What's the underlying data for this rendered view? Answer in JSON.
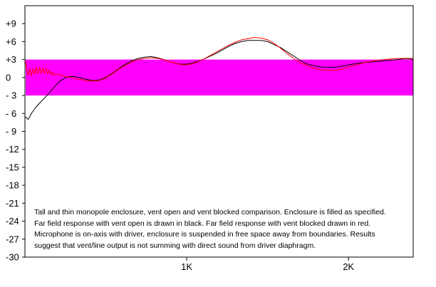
{
  "chart_data": {
    "type": "line",
    "title": "",
    "xlabel": "",
    "ylabel": "",
    "ylim": [
      -30,
      12
    ],
    "xlim": [
      0,
      2400
    ],
    "yticks": [
      9,
      6,
      3,
      0,
      -3,
      -6,
      -9,
      -12,
      -15,
      -18,
      -21,
      -24,
      -27,
      -30
    ],
    "ytick_labels": [
      "+9",
      "+6",
      "+3",
      "0",
      "- 3",
      "- 6",
      "- 9",
      "-12",
      "-15",
      "-18",
      "-21",
      "-24",
      "-27",
      "-30"
    ],
    "xticks": [
      1000,
      2000
    ],
    "xtick_labels": [
      "1K",
      "2K"
    ],
    "band": {
      "y_min": -3,
      "y_max": 3,
      "color": "#ff00ff"
    },
    "grid": false,
    "series": [
      {
        "color": "#000000",
        "x": [
          0,
          20,
          45,
          70,
          100,
          140,
          180,
          220,
          260,
          300,
          340,
          380,
          420,
          460,
          500,
          540,
          580,
          620,
          660,
          700,
          740,
          780,
          820,
          860,
          900,
          940,
          980,
          1020,
          1060,
          1100,
          1140,
          1180,
          1220,
          1260,
          1300,
          1340,
          1380,
          1420,
          1460,
          1500,
          1540,
          1580,
          1620,
          1660,
          1700,
          1740,
          1780,
          1820,
          1860,
          1900,
          1940,
          1980,
          2020,
          2060,
          2100,
          2140,
          2180,
          2220,
          2260,
          2300,
          2340,
          2380,
          2400
        ],
        "y": [
          -6.5,
          -7.0,
          -5.8,
          -4.9,
          -4.0,
          -2.9,
          -1.6,
          -0.5,
          0.1,
          0.2,
          0.0,
          -0.3,
          -0.5,
          -0.4,
          0.0,
          0.7,
          1.5,
          2.2,
          2.8,
          3.2,
          3.4,
          3.5,
          3.3,
          3.0,
          2.6,
          2.3,
          2.2,
          2.3,
          2.6,
          3.0,
          3.5,
          4.0,
          4.6,
          5.2,
          5.7,
          6.0,
          6.2,
          6.2,
          6.2,
          6.0,
          5.5,
          5.0,
          4.3,
          3.6,
          2.9,
          2.3,
          2.0,
          1.8,
          1.7,
          1.7,
          1.8,
          2.0,
          2.2,
          2.4,
          2.5,
          2.6,
          2.7,
          2.8,
          2.9,
          3.0,
          3.1,
          3.1,
          3.0
        ]
      },
      {
        "color": "#ff0000",
        "x": [
          0,
          10,
          20,
          30,
          40,
          50,
          60,
          70,
          80,
          90,
          100,
          110,
          120,
          130,
          140,
          150,
          160,
          170,
          180,
          190,
          200,
          220,
          260,
          300,
          340,
          380,
          420,
          460,
          500,
          540,
          580,
          620,
          660,
          700,
          740,
          780,
          820,
          860,
          900,
          940,
          980,
          1020,
          1060,
          1100,
          1140,
          1180,
          1220,
          1260,
          1300,
          1340,
          1380,
          1420,
          1460,
          1500,
          1540,
          1580,
          1620,
          1660,
          1700,
          1740,
          1780,
          1820,
          1860,
          1900,
          1940,
          1980,
          2020,
          2060,
          2100,
          2140,
          2180,
          2220,
          2260,
          2300,
          2340,
          2380,
          2400
        ],
        "y": [
          3.0,
          1.5,
          0.4,
          1.4,
          0.3,
          1.5,
          0.5,
          1.6,
          0.6,
          1.7,
          0.7,
          1.6,
          0.7,
          1.5,
          0.6,
          1.2,
          0.5,
          0.9,
          0.4,
          0.6,
          0.5,
          0.4,
          0.1,
          -0.1,
          -0.3,
          -0.5,
          -0.6,
          -0.5,
          -0.1,
          0.6,
          1.4,
          2.0,
          2.6,
          3.0,
          3.2,
          3.3,
          3.2,
          3.0,
          2.6,
          2.3,
          2.1,
          2.2,
          2.5,
          3.0,
          3.6,
          4.2,
          4.8,
          5.4,
          5.9,
          6.3,
          6.5,
          6.7,
          6.6,
          6.3,
          5.7,
          4.9,
          4.0,
          3.2,
          2.5,
          2.0,
          1.6,
          1.3,
          1.2,
          1.2,
          1.3,
          1.6,
          1.9,
          2.2,
          2.5,
          2.7,
          2.9,
          3.0,
          3.1,
          3.2,
          3.2,
          3.2,
          3.2
        ]
      }
    ],
    "annotation": [
      "Tall and thin monopole enclosure, vent open and vent blocked comparison.  Enclosure is filled as specified.",
      "Far field response with vent open is drawn in black.  Far field response with vent blocked drawn in red.",
      "Microphone is on-axis with driver, enclosure is suspended in free space away from boundaries.  Results",
      "suggest that vent/line output is not summing with direct sound from driver diaphragm."
    ]
  }
}
